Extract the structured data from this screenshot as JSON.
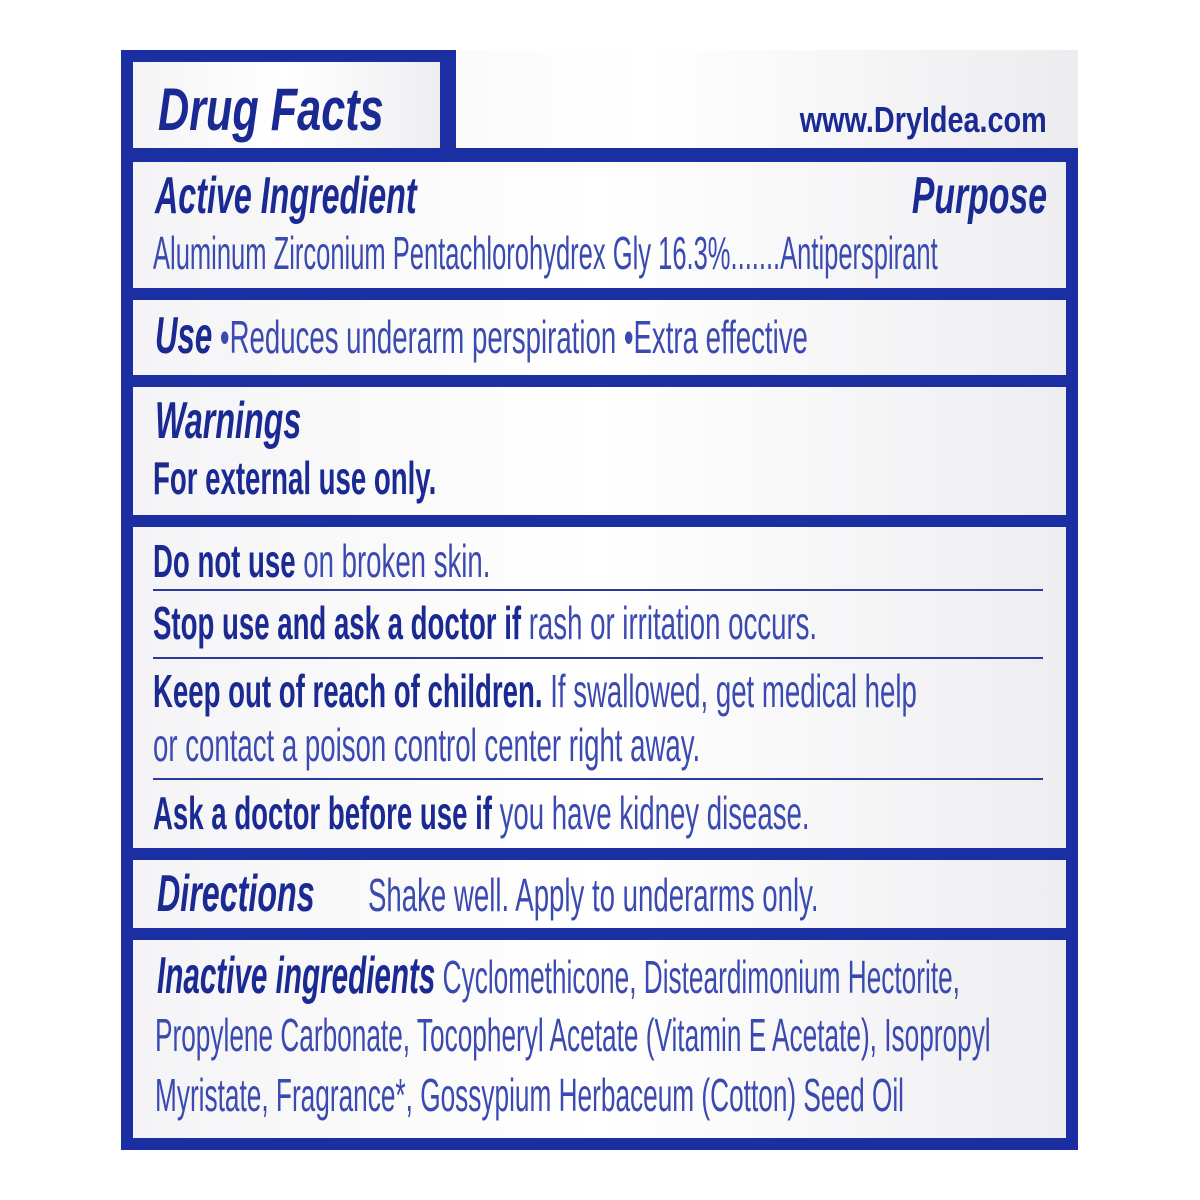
{
  "header": {
    "title": "Drug Facts",
    "website": "www.DryIdea.com"
  },
  "active": {
    "heading": "Active Ingredient",
    "purpose_heading": "Purpose",
    "line": "Aluminum Zirconium Pentachlorohydrex Gly 16.3%.......Antiperspirant"
  },
  "use": {
    "heading": "Use",
    "text": " •Reduces underarm perspiration •Extra effective"
  },
  "warnings": {
    "heading": "Warnings",
    "external": "For external use only.",
    "do_not_use_bold": "Do not use",
    "do_not_use_text": " on broken skin.",
    "stop_bold": "Stop use and ask a doctor if",
    "stop_text": " rash or irritation occurs.",
    "keep_bold": "Keep out of reach of children.",
    "keep_text": " If swallowed, get medical help",
    "keep_text2": "or contact a poison control center right away.",
    "ask_bold": "Ask a doctor before use if",
    "ask_text": " you have kidney disease."
  },
  "directions": {
    "heading": "Directions",
    "text": "Shake well. Apply to underarms only."
  },
  "inactive": {
    "heading": "Inactive ingredients",
    "line1": " Cyclomethicone, Disteardimonium Hectorite,",
    "line2": "Propylene Carbonate, Tocopheryl Acetate (Vitamin E Acetate), Isopropyl",
    "line3": "Myristate, Fragrance*, Gossypium Herbaceum (Cotton) Seed Oil"
  },
  "colors": {
    "border": "#1b2fa3",
    "heading_text": "#1a2a92",
    "body_text": "#3a4ab0"
  }
}
